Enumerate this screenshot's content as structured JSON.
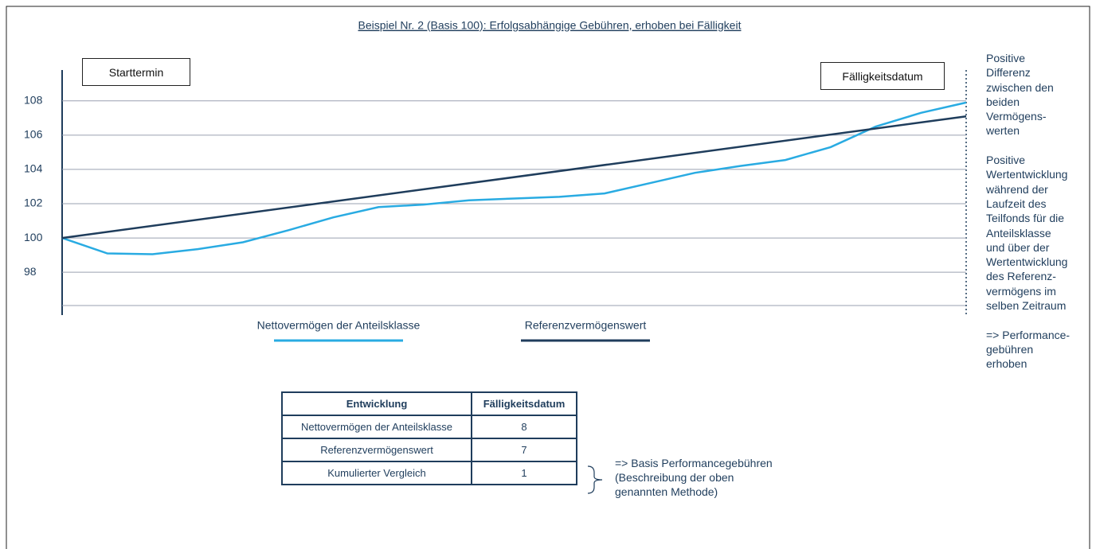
{
  "chart_data": {
    "type": "line",
    "title": "Beispiel Nr. 2 (Basis 100): Erfolgsabhängige Gebühren, erhoben bei Fälligkeit",
    "annotations": [
      "Starttermin",
      "Fälligkeitsdatum"
    ],
    "side_notes": [
      [
        "Positive",
        "Differenz",
        "zwischen den",
        "beiden",
        "Vermögens-",
        "werten"
      ],
      [
        "Positive",
        "Wertentwicklung",
        "während der",
        "Laufzeit des",
        "Teilfonds für die",
        "Anteilsklasse",
        "und über der",
        "Wertentwicklung",
        "des Referenz-",
        "vermögens im",
        "selben Zeitraum"
      ],
      [
        "=> Performance-",
        "gebühren",
        "erhoben"
      ]
    ],
    "xlim": [
      0,
      100
    ],
    "ylim": [
      95.5,
      109.8
    ],
    "yticks": [
      98,
      100,
      102,
      104,
      106,
      108
    ],
    "grid": true,
    "series": [
      {
        "name": "Nettovermögen der Anteilsklasse",
        "color": "#29abe2",
        "x": [
          0,
          5,
          10,
          15,
          20,
          25,
          30,
          35,
          40,
          45,
          50,
          55,
          60,
          65,
          70,
          75,
          80,
          85,
          90,
          95,
          100
        ],
        "values": [
          100,
          99.1,
          99.05,
          99.35,
          99.75,
          100.45,
          101.2,
          101.8,
          101.95,
          102.2,
          102.3,
          102.4,
          102.6,
          103.2,
          103.8,
          104.2,
          104.55,
          105.3,
          106.5,
          107.3,
          107.9
        ]
      },
      {
        "name": "Referenzvermögenswert",
        "color": "#1f3d5c",
        "x": [
          0,
          100
        ],
        "values": [
          100,
          107.1
        ]
      }
    ]
  },
  "table": {
    "header": [
      "Entwicklung",
      "Fälligkeitsdatum"
    ],
    "rows": [
      [
        "Nettovermögen der Anteilsklasse",
        "8"
      ],
      [
        "Referenzvermögenswert",
        "7"
      ],
      [
        "Kumulierter Vergleich",
        "1"
      ]
    ],
    "note": [
      "=> Basis Performancegebühren",
      "(Beschreibung der oben",
      "genannten Methode)"
    ]
  }
}
